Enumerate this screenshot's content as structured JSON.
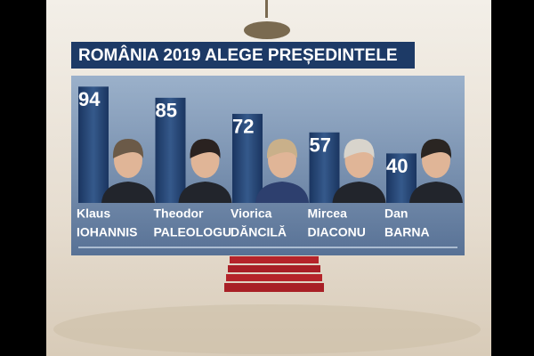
{
  "chart_data": {
    "type": "bar",
    "title": "ROMÂNIA 2019 ALEGE PREȘEDINTELE",
    "categories": [
      [
        "Klaus",
        "IOHANNIS"
      ],
      [
        "Theodor",
        "PALEOLOGU"
      ],
      [
        "Viorica",
        "DĂNCILĂ"
      ],
      [
        "Mircea",
        "DIACONU"
      ],
      [
        "Dan",
        "BARNA"
      ]
    ],
    "values": [
      94,
      85,
      72,
      57,
      40
    ],
    "color": "#1f3c67",
    "ylim": [
      0,
      100
    ]
  }
}
